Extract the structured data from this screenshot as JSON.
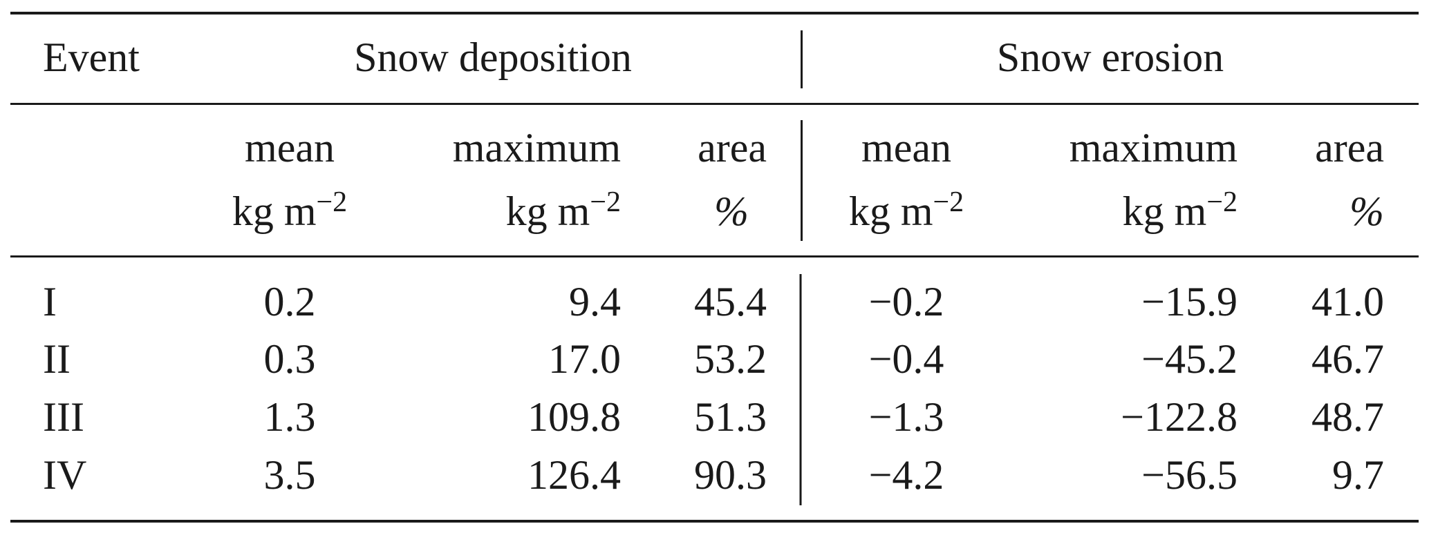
{
  "table": {
    "header": {
      "event": "Event",
      "group_deposition": "Snow deposition",
      "group_erosion": "Snow erosion"
    },
    "subheader": {
      "deposition": {
        "mean": {
          "label": "mean",
          "unit_base": "kg m",
          "unit_exp": "−2"
        },
        "maximum": {
          "label": "maximum",
          "unit_base": "kg m",
          "unit_exp": "−2"
        },
        "area": {
          "label": "area",
          "unit": "%"
        }
      },
      "erosion": {
        "mean": {
          "label": "mean",
          "unit_base": "kg m",
          "unit_exp": "−2"
        },
        "maximum": {
          "label": "maximum",
          "unit_base": "kg m",
          "unit_exp": "−2"
        },
        "area": {
          "label": "area",
          "unit": "%"
        }
      }
    },
    "rows": [
      {
        "event": "I",
        "dep_mean": "0.2",
        "dep_max": "9.4",
        "dep_area": "45.4",
        "ero_mean": "−0.2",
        "ero_max": "−15.9",
        "ero_area": "41.0"
      },
      {
        "event": "II",
        "dep_mean": "0.3",
        "dep_max": "17.0",
        "dep_area": "53.2",
        "ero_mean": "−0.4",
        "ero_max": "−45.2",
        "ero_area": "46.7"
      },
      {
        "event": "III",
        "dep_mean": "1.3",
        "dep_max": "109.8",
        "dep_area": "51.3",
        "ero_mean": "−1.3",
        "ero_max": "−122.8",
        "ero_area": "48.7"
      },
      {
        "event": "IV",
        "dep_mean": "3.5",
        "dep_max": "126.4",
        "dep_area": "90.3",
        "ero_mean": "−4.2",
        "ero_max": "−56.5",
        "ero_area": "9.7"
      }
    ]
  }
}
